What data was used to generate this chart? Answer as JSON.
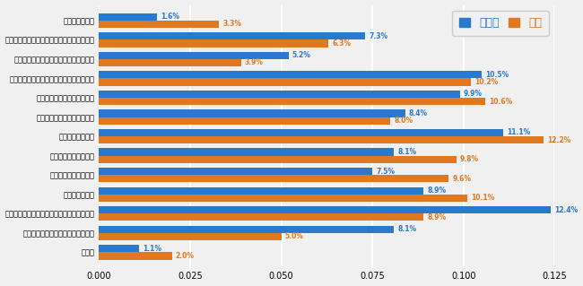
{
  "categories": [
    "その他",
    "社会のマナーやルールが身につくか",
    "将来の目標ややりたいことを見つけられるか",
    "友達ができるか",
    "どんな生徒がいるのか",
    "どんな先生がいるのか",
    "学校に馴染めるか",
    "その先の就職に影響がないか",
    "その先の進学に影響がないか",
    "全日制高校と同じ高校卒業資格が取れるか",
    "全日制高校と同等の高校生活を送れるか",
    "全日制高校と同じ水準の教育を受けられるか",
    "特に不安はない"
  ],
  "blue_values": [
    0.011,
    0.081,
    0.124,
    0.089,
    0.075,
    0.081,
    0.111,
    0.084,
    0.099,
    0.105,
    0.052,
    0.073,
    0.016
  ],
  "orange_values": [
    0.02,
    0.05,
    0.089,
    0.101,
    0.096,
    0.098,
    0.122,
    0.08,
    0.106,
    0.102,
    0.039,
    0.063,
    0.033
  ],
  "blue_labels": [
    "1.1%",
    "8.1%",
    "12.4%",
    "8.9%",
    "7.5%",
    "8.1%",
    "11.1%",
    "8.4%",
    "9.9%",
    "10.5%",
    "5.2%",
    "7.3%",
    "1.6%"
  ],
  "orange_labels": [
    "2.0%",
    "5.0%",
    "8.9%",
    "10.1%",
    "9.6%",
    "9.8%",
    "12.2%",
    "8.0%",
    "10.6%",
    "10.2%",
    "3.9%",
    "6.3%",
    "3.3%"
  ],
  "blue_color": "#2979cc",
  "orange_color": "#e07820",
  "legend_blue": "保護者",
  "legend_orange": "本人",
  "xlim": [
    0,
    0.125
  ],
  "xticks": [
    0,
    0.025,
    0.05,
    0.075,
    0.1,
    0.125
  ],
  "background_color": "#f0f0f0",
  "bar_height": 0.38,
  "grid_color": "#ffffff"
}
